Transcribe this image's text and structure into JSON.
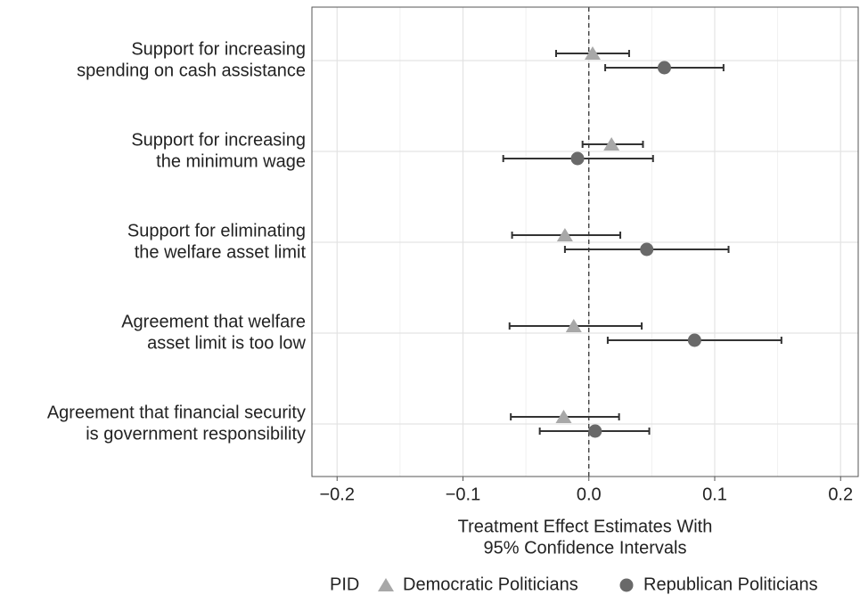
{
  "chart_data": {
    "type": "errorbar",
    "categories": [
      [
        "Support for increasing",
        "spending on cash assistance"
      ],
      [
        "Support for increasing",
        "the minimum wage"
      ],
      [
        "Support for eliminating",
        "the welfare asset limit"
      ],
      [
        "Agreement that welfare",
        "asset limit is too low"
      ],
      [
        "Agreement that financial security",
        "is government responsibility"
      ]
    ],
    "series": [
      {
        "name": "Democratic Politicians",
        "color": "#a8a8a8",
        "marker": "triangle",
        "values": [
          0.003,
          0.018,
          -0.019,
          -0.012,
          -0.02
        ],
        "lower": [
          -0.026,
          -0.005,
          -0.061,
          -0.063,
          -0.062
        ],
        "upper": [
          0.032,
          0.043,
          0.025,
          0.042,
          0.024
        ]
      },
      {
        "name": "Republican Politicians",
        "color": "#696969",
        "marker": "circle",
        "values": [
          0.06,
          -0.009,
          0.046,
          0.084,
          0.005
        ],
        "lower": [
          0.013,
          -0.068,
          -0.019,
          0.015,
          -0.039
        ],
        "upper": [
          0.107,
          0.051,
          0.111,
          0.153,
          0.048
        ]
      }
    ],
    "xlabel": [
      "Treatment Effect Estimates With",
      "95% Confidence Intervals"
    ],
    "xlim": [
      -0.22,
      0.214
    ],
    "xticks": [
      {
        "value": -0.2,
        "label": "−0.2"
      },
      {
        "value": -0.1,
        "label": "−0.1"
      },
      {
        "value": 0,
        "label": "0.0"
      },
      0.1,
      0.2
    ],
    "minor_xticks": [
      -0.15,
      -0.05,
      0.05,
      0.15
    ],
    "ref_line": 0,
    "grid": true,
    "legend_title": "PID",
    "legend_position": "bottom"
  }
}
